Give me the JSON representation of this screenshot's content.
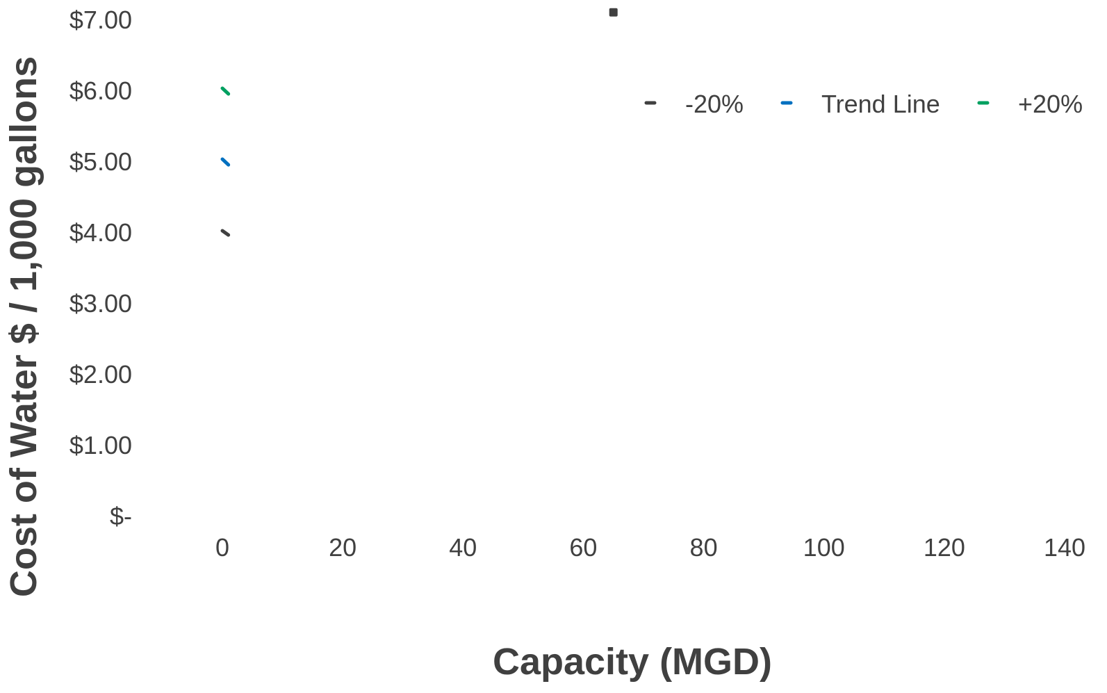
{
  "chart_data": {
    "type": "line",
    "xlabel": "Capacity (MGD)",
    "ylabel": "Cost of Water $ / 1,000 gallons",
    "xlim": [
      0,
      140
    ],
    "ylim": [
      0,
      7
    ],
    "x_ticks": [
      "0",
      "20",
      "40",
      "60",
      "80",
      "100",
      "120",
      "140"
    ],
    "y_ticks": [
      "$-",
      "$1.00",
      "$2.00",
      "$3.00",
      "$4.00",
      "$5.00",
      "$6.00",
      "$7.00"
    ],
    "grid": false,
    "legend_position": "top-right",
    "series": [
      {
        "name": "-20%",
        "color": "#404040",
        "x": [
          0,
          1
        ],
        "y": [
          4.02,
          3.96
        ]
      },
      {
        "name": "Trend Line",
        "color": "#0070c0",
        "x": [
          0,
          1
        ],
        "y": [
          5.03,
          4.95
        ]
      },
      {
        "name": "+20%",
        "color": "#00a060",
        "x": [
          0,
          1
        ],
        "y": [
          6.03,
          5.95
        ]
      }
    ],
    "markers": [
      {
        "x": 65,
        "y": 7.1,
        "color": "#404040"
      }
    ]
  }
}
